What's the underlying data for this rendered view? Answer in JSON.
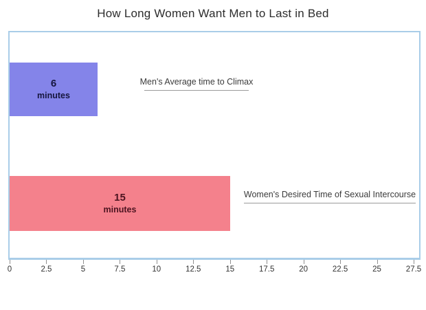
{
  "title": "How Long Women Want Men to Last in Bed",
  "colors": {
    "men_bar": "#8484e9",
    "women_bar": "#f4818c",
    "men_bar_text": "#16163e",
    "women_bar_text": "#4c1420",
    "plot_border": "#a9cde8",
    "annotation_text": "#3b3b3b",
    "underline": "#9a9a9a",
    "tick_text": "#333333",
    "title_text": "#2c2c2c"
  },
  "bars": [
    {
      "name": "men",
      "value_label": "6",
      "unit_label": "minutes",
      "annotation": "Men's Average time to Climax"
    },
    {
      "name": "women",
      "value_label": "15",
      "unit_label": "minutes",
      "annotation": "Women's Desired Time of Sexual Intercourse"
    }
  ],
  "chart_data": {
    "type": "bar",
    "orientation": "horizontal",
    "title": "How Long Women Want Men to Last in Bed",
    "categories": [
      "Men's Average time to Climax",
      "Women's Desired Time of Sexual Intercourse"
    ],
    "values": [
      6,
      15
    ],
    "unit": "minutes",
    "xlabel": "",
    "ylabel": "",
    "xlim": [
      0,
      27.5
    ],
    "x_ticks": [
      0,
      2.5,
      5,
      7.5,
      10,
      12.5,
      15,
      17.5,
      20,
      22.5,
      25,
      27.5
    ],
    "grid": false,
    "legend": "none",
    "series": [
      {
        "name": "Men's Average time to Climax",
        "values": [
          6
        ],
        "color": "#8484e9"
      },
      {
        "name": "Women's Desired Time of Sexual Intercourse",
        "values": [
          15
        ],
        "color": "#f4818c"
      }
    ]
  }
}
